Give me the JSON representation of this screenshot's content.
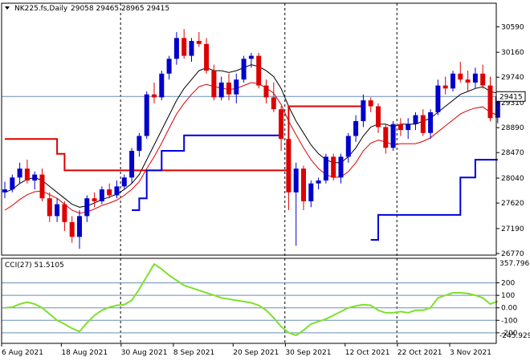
{
  "header": {
    "symbol": "NK225.fs,Daily",
    "ohlc": "29058 29465 28965 29415"
  },
  "cci_header": {
    "label": "CCI(27) 51.5105"
  },
  "chart_data": [
    {
      "type": "candlestick",
      "title": "NK225.fs,Daily 29058 29465 28965 29415",
      "ylim": [
        26770,
        30770
      ],
      "yticks": [
        "30590",
        "30160",
        "29740",
        "29310",
        "28890",
        "28470",
        "28040",
        "27620",
        "27190",
        "26770"
      ],
      "last_price": "29415",
      "last_price_value": 29415,
      "xlabels": [
        "6 Aug 2021",
        "18 Aug 2021",
        "30 Aug 2021",
        "8 Sep 2021",
        "20 Sep 2021",
        "30 Sep 2021",
        "12 Oct 2021",
        "22 Oct 2021",
        "3 Nov 2021"
      ],
      "xlabel_index": [
        0,
        8,
        16,
        23,
        31,
        38,
        46,
        53,
        60
      ],
      "candles": [
        [
          27800,
          27980,
          27700,
          27850
        ],
        [
          27850,
          28100,
          27800,
          28050
        ],
        [
          28050,
          28300,
          27950,
          28200
        ],
        [
          28200,
          28350,
          27950,
          28000
        ],
        [
          28000,
          28150,
          27850,
          28100
        ],
        [
          28100,
          28200,
          27650,
          27700
        ],
        [
          27700,
          27800,
          27300,
          27400
        ],
        [
          27400,
          27700,
          27300,
          27600
        ],
        [
          27600,
          27650,
          27150,
          27300
        ],
        [
          27300,
          27400,
          26950,
          27050
        ],
        [
          27050,
          27500,
          26850,
          27400
        ],
        [
          27400,
          27750,
          27300,
          27700
        ],
        [
          27700,
          27800,
          27550,
          27650
        ],
        [
          27650,
          27900,
          27600,
          27850
        ],
        [
          27850,
          27950,
          27700,
          27750
        ],
        [
          27750,
          28000,
          27700,
          27900
        ],
        [
          27900,
          28100,
          27850,
          28050
        ],
        [
          28050,
          28550,
          27950,
          28500
        ],
        [
          28500,
          28800,
          28400,
          28750
        ],
        [
          28750,
          29500,
          28700,
          29450
        ],
        [
          29450,
          29650,
          29300,
          29400
        ],
        [
          29400,
          29850,
          29350,
          29800
        ],
        [
          29800,
          30100,
          29700,
          30050
        ],
        [
          30050,
          30500,
          29950,
          30400
        ],
        [
          30400,
          30550,
          30050,
          30100
        ],
        [
          30100,
          30400,
          30000,
          30350
        ],
        [
          30350,
          30500,
          30250,
          30300
        ],
        [
          30300,
          30400,
          29800,
          29850
        ],
        [
          29850,
          29950,
          29350,
          29400
        ],
        [
          29400,
          29750,
          29350,
          29650
        ],
        [
          29650,
          29800,
          29350,
          29450
        ],
        [
          29450,
          29800,
          29300,
          29700
        ],
        [
          29700,
          30100,
          29650,
          30050
        ],
        [
          30050,
          30150,
          29900,
          30100
        ],
        [
          30100,
          30150,
          29550,
          29600
        ],
        [
          29600,
          29700,
          29300,
          29400
        ],
        [
          29400,
          29650,
          29150,
          29200
        ],
        [
          29200,
          29250,
          28500,
          28700
        ],
        [
          28700,
          28750,
          27500,
          27800
        ],
        [
          27800,
          28300,
          26900,
          28200
        ],
        [
          28200,
          28250,
          27500,
          27650
        ],
        [
          27650,
          28000,
          27550,
          27950
        ],
        [
          27950,
          28050,
          27850,
          28000
        ],
        [
          28000,
          28450,
          27950,
          28400
        ],
        [
          28400,
          28450,
          28000,
          28050
        ],
        [
          28050,
          28450,
          27950,
          28400
        ],
        [
          28400,
          28800,
          28300,
          28750
        ],
        [
          28750,
          29100,
          28650,
          29000
        ],
        [
          29000,
          29450,
          28900,
          29350
        ],
        [
          29350,
          29400,
          29150,
          29250
        ],
        [
          29250,
          29300,
          28800,
          28900
        ],
        [
          28900,
          28950,
          28450,
          28550
        ],
        [
          28550,
          29000,
          28500,
          28950
        ],
        [
          28950,
          29050,
          28750,
          28850
        ],
        [
          28850,
          29050,
          28700,
          28950
        ],
        [
          28950,
          29150,
          28850,
          29100
        ],
        [
          29100,
          29200,
          28750,
          28800
        ],
        [
          28800,
          29200,
          28700,
          29150
        ],
        [
          29150,
          29700,
          29100,
          29600
        ],
        [
          29600,
          29750,
          29450,
          29550
        ],
        [
          29550,
          29850,
          29500,
          29800
        ],
        [
          29800,
          30000,
          29650,
          29700
        ],
        [
          29700,
          29850,
          29500,
          29650
        ],
        [
          29650,
          29900,
          29550,
          29800
        ],
        [
          29800,
          29950,
          29550,
          29600
        ],
        [
          29600,
          29750,
          29000,
          29050
        ],
        [
          29058,
          29465,
          28965,
          29415
        ]
      ],
      "series": [
        {
          "values": [
            27800,
            27850,
            27950,
            28020,
            28050,
            28000,
            27900,
            27800,
            27700,
            27600,
            27550,
            27570,
            27620,
            27680,
            27720,
            27770,
            27850,
            27950,
            28100,
            28350,
            28600,
            28850,
            29100,
            29350,
            29550,
            29700,
            29850,
            29900,
            29850,
            29850,
            29820,
            29850,
            29900,
            29950,
            29920,
            29850,
            29750,
            29550,
            29250,
            29000,
            28800,
            28600,
            28450,
            28350,
            28300,
            28300,
            28400,
            28550,
            28750,
            28900,
            28950,
            28950,
            28900,
            28950,
            28950,
            28950,
            29000,
            29050,
            29150,
            29250,
            29350,
            29450,
            29500,
            29550,
            29580,
            29500,
            29470
          ]
        },
        {
          "values": [
            27500,
            27580,
            27680,
            27760,
            27810,
            27820,
            27760,
            27700,
            27600,
            27500,
            27450,
            27470,
            27520,
            27580,
            27620,
            27670,
            27750,
            27850,
            27980,
            28200,
            28400,
            28630,
            28880,
            29120,
            29300,
            29450,
            29580,
            29620,
            29580,
            29560,
            29530,
            29550,
            29600,
            29650,
            29630,
            29560,
            29470,
            29280,
            29000,
            28770,
            28550,
            28350,
            28200,
            28100,
            28050,
            28060,
            28150,
            28300,
            28500,
            28630,
            28680,
            28650,
            28600,
            28620,
            28620,
            28620,
            28660,
            28720,
            28820,
            28920,
            29020,
            29120,
            29180,
            29220,
            29240,
            29150,
            29100
          ]
        },
        {
          "values": [
            28700,
            28700,
            28700,
            28700,
            28700,
            28700,
            28700,
            28450,
            28170,
            28170,
            28170,
            28170,
            28170,
            28170,
            28170,
            28170,
            28170,
            28170,
            28170,
            28170,
            28170,
            28170,
            28170,
            28170,
            28170,
            28170,
            28170,
            28170,
            28170,
            28170,
            28170,
            28170,
            28170,
            28170,
            28170,
            28170,
            28170,
            28170,
            29250,
            29250,
            29250,
            29250,
            29250,
            29250,
            29250,
            29250,
            29250,
            29250,
            29250,
            null,
            null,
            null,
            null,
            null,
            null,
            null,
            null,
            null,
            null,
            null,
            null,
            null,
            null,
            null,
            null,
            null,
            null
          ]
        },
        {
          "values": [
            null,
            null,
            null,
            null,
            null,
            null,
            null,
            null,
            null,
            null,
            null,
            null,
            null,
            null,
            null,
            null,
            null,
            27500,
            27700,
            28170,
            28170,
            28500,
            28500,
            28500,
            28760,
            28760,
            28760,
            28760,
            28760,
            28760,
            28760,
            28760,
            28760,
            28760,
            28760,
            28760,
            28760,
            28760,
            null,
            null,
            null,
            null,
            null,
            null,
            null,
            null,
            null,
            null,
            null,
            27000,
            27420,
            27420,
            27420,
            27420,
            27420,
            27420,
            27420,
            27420,
            27420,
            27420,
            27420,
            28050,
            28050,
            28350,
            28350,
            28350,
            28350
          ]
        }
      ]
    },
    {
      "type": "line",
      "title": "CCI(27) 51.5105",
      "ylim": [
        -245.929,
        357.796
      ],
      "ymax_label": "357.796",
      "ymin_label": "-245.929",
      "yticks": [
        "200",
        "100",
        "0.00",
        "-100",
        "-200"
      ],
      "levels": [
        200,
        100,
        0,
        -100,
        -200
      ],
      "series": [
        {
          "values": [
            0,
            5,
            30,
            45,
            30,
            0,
            -50,
            -100,
            -130,
            -165,
            -190,
            -120,
            -60,
            -20,
            5,
            20,
            25,
            60,
            150,
            250,
            350,
            310,
            260,
            220,
            180,
            160,
            140,
            120,
            100,
            80,
            70,
            60,
            50,
            40,
            20,
            -20,
            -80,
            -150,
            -200,
            -220,
            -180,
            -130,
            -110,
            -90,
            -60,
            -30,
            0,
            15,
            25,
            20,
            -20,
            -40,
            -40,
            -30,
            -40,
            -20,
            -20,
            0,
            80,
            100,
            120,
            120,
            115,
            100,
            80,
            30,
            51.5
          ]
        }
      ]
    }
  ]
}
